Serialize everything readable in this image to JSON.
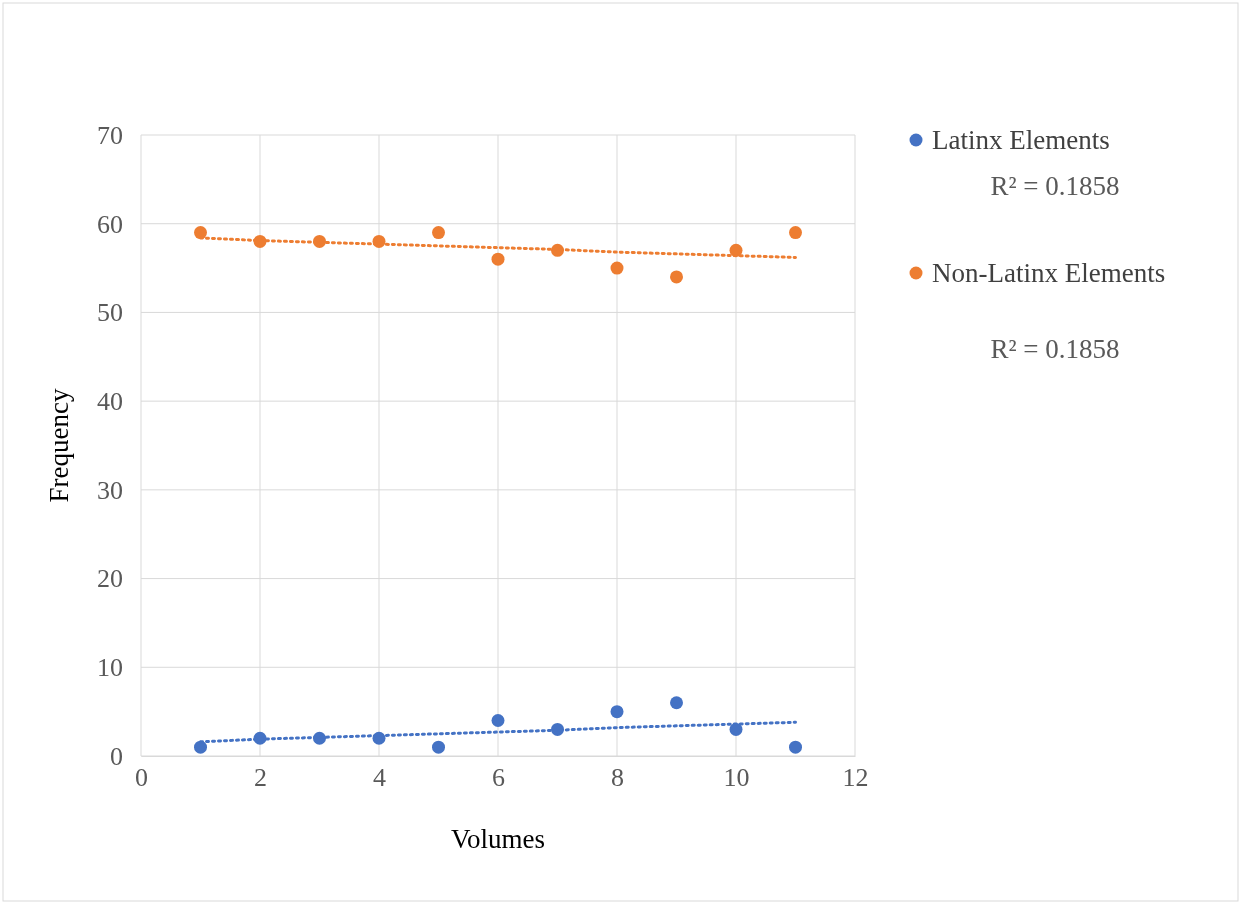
{
  "chart_data": {
    "type": "scatter",
    "xlabel": "Volumes",
    "ylabel": "Frequency",
    "x": [
      1,
      2,
      3,
      4,
      5,
      6,
      7,
      8,
      9,
      10,
      11
    ],
    "xlim": [
      0,
      12
    ],
    "xticks": [
      0,
      2,
      4,
      6,
      8,
      10,
      12
    ],
    "ylim": [
      0,
      70
    ],
    "yticks": [
      0,
      10,
      20,
      30,
      40,
      50,
      60,
      70
    ],
    "grid": true,
    "legend": "right",
    "series": [
      {
        "name": "Latinx Elements",
        "color": "#4472c4",
        "marker": "circle",
        "values": [
          1,
          2,
          2,
          2,
          1,
          4,
          3,
          5,
          6,
          3,
          1
        ]
      },
      {
        "name": "Non-Latinx Elements",
        "color": "#ed7d31",
        "marker": "circle",
        "values": [
          59,
          58,
          58,
          58,
          59,
          56,
          57,
          55,
          54,
          57,
          59
        ]
      },
      {
        "type": "line",
        "color": "#4472c4",
        "line_style": "dotted",
        "values": [
          1.6,
          1.9,
          2.1,
          2.3,
          2.5,
          2.7,
          2.9,
          3.2,
          3.4,
          3.6,
          3.8
        ]
      },
      {
        "type": "line",
        "color": "#ed7d31",
        "line_style": "dotted",
        "values": [
          58.4,
          58.1,
          57.9,
          57.7,
          57.5,
          57.3,
          57.1,
          56.8,
          56.6,
          56.4,
          56.2
        ]
      }
    ],
    "annotations": [
      "R² = 0.1858",
      "R² = 0.1858"
    ]
  }
}
